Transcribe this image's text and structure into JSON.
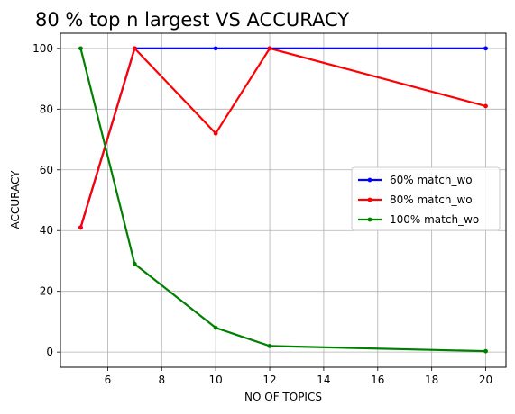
{
  "chart_data": {
    "type": "line",
    "title": "80 % top n largest VS ACCURACY",
    "xlabel": "NO OF TOPICS",
    "ylabel": "ACCURACY",
    "x": [
      5,
      7,
      10,
      12,
      20
    ],
    "xlim": [
      4.25,
      20.75
    ],
    "ylim": [
      -5,
      105
    ],
    "xticks": [
      "6",
      "8",
      "10",
      "12",
      "14",
      "16",
      "18",
      "20"
    ],
    "yticks": [
      "0",
      "20",
      "40",
      "60",
      "80",
      "100"
    ],
    "grid": true,
    "legend_position": "center-right",
    "series": [
      {
        "name": "60% match_wo",
        "color": "#0000ff",
        "values": [
          41,
          100,
          100,
          100,
          100
        ]
      },
      {
        "name": "80% match_wo",
        "color": "#ff0000",
        "values": [
          41,
          100,
          72,
          100,
          81
        ]
      },
      {
        "name": "100% match_wo",
        "color": "#008000",
        "values": [
          100,
          29,
          8,
          2,
          0.3
        ]
      }
    ]
  }
}
